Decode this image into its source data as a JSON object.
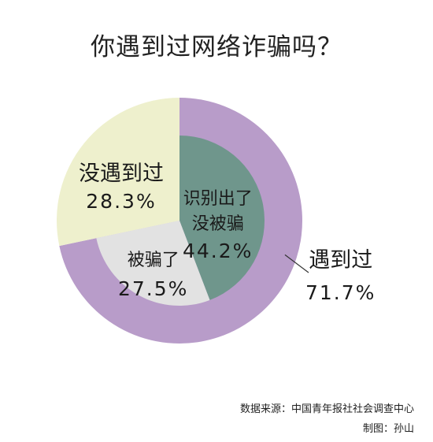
{
  "title": "你遇到过网络诈骗吗？",
  "chart_data": {
    "type": "pie",
    "title": "你遇到过网络诈骗吗？",
    "outer_ring": [
      {
        "label": "遇到过",
        "value": 71.7,
        "value_label": "71.7%",
        "color": "#b89cc9"
      },
      {
        "label": "没遇到过",
        "value": 28.3,
        "value_label": "28.3%",
        "color": "#eef0cd"
      }
    ],
    "inner_slices": [
      {
        "label_lines": [
          "识别出了",
          "没被骗"
        ],
        "value": 44.2,
        "value_label": "44.2%",
        "color": "#6f968c"
      },
      {
        "label_lines": [
          "被骗了"
        ],
        "value": 27.5,
        "value_label": "27.5%",
        "color": "#e2e2e2"
      }
    ]
  },
  "footer": {
    "source": "数据来源：中国青年报社社会调查中心",
    "credit": "制图：孙山"
  }
}
